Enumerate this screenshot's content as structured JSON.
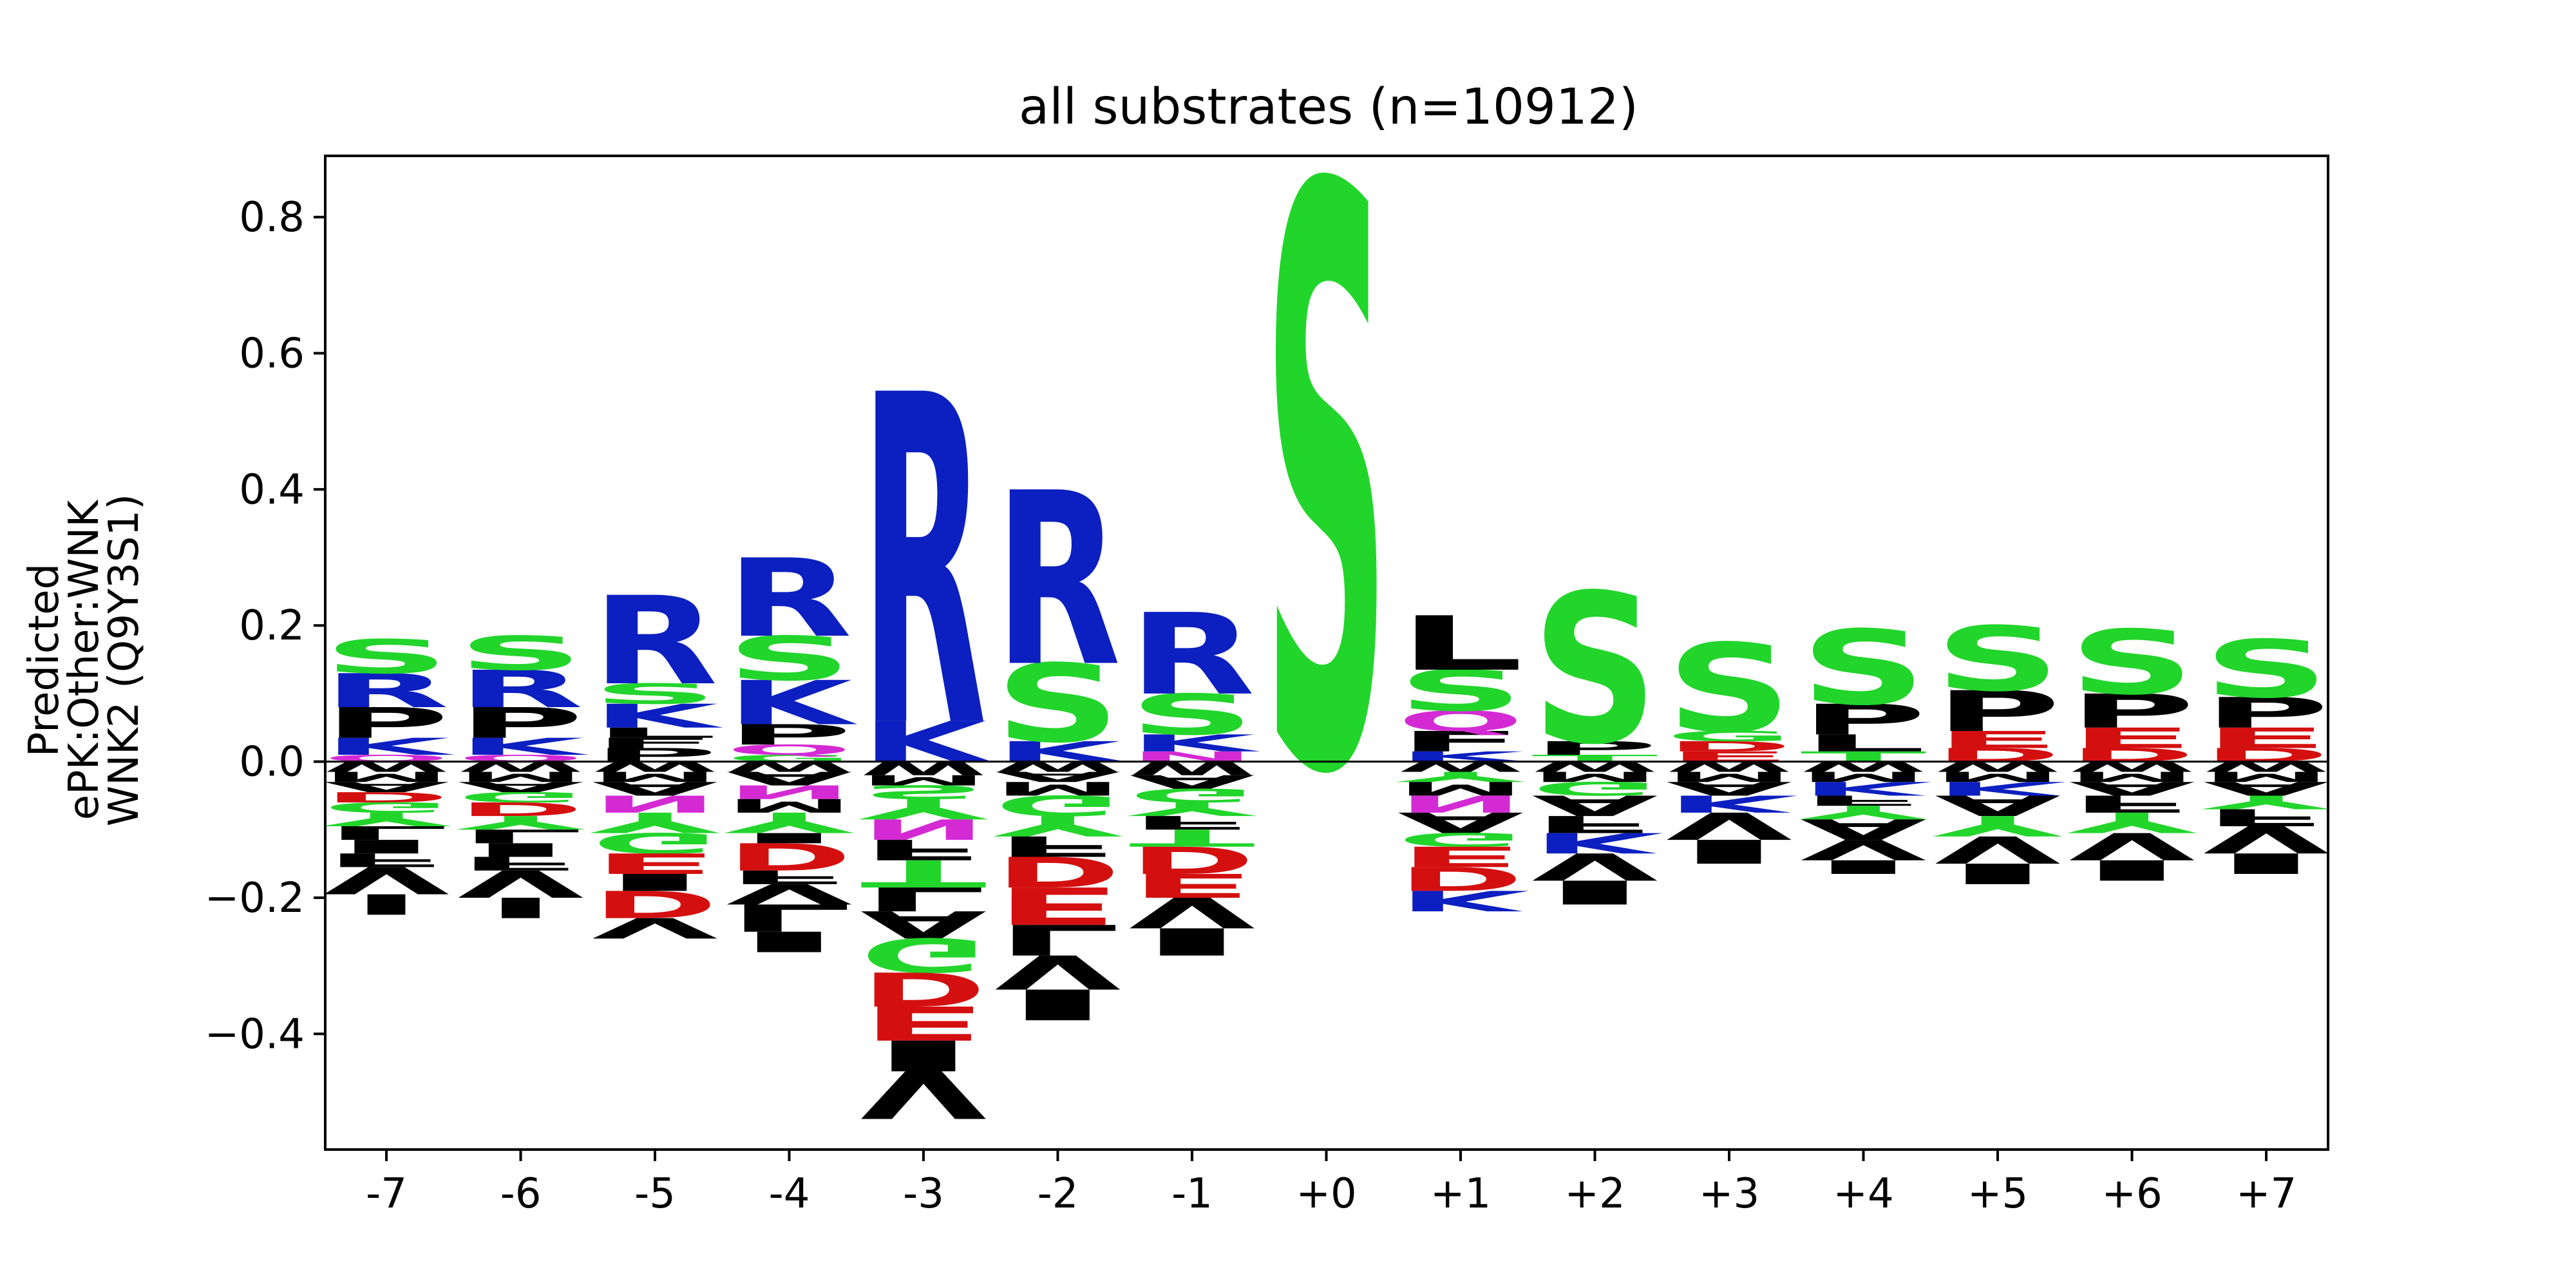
{
  "chart_data": {
    "type": "sequence-logo",
    "title": "all substrates (n=10912)",
    "ylabel": [
      "Predicted",
      "ePK:Other:WNK",
      "WNK2 (Q9Y3S1)"
    ],
    "ylim": [
      -0.57,
      0.89
    ],
    "yticks": [
      -0.4,
      -0.2,
      0.0,
      0.2,
      0.4,
      0.6,
      0.8
    ],
    "ytick_labels": [
      "−0.4",
      "−0.2",
      "0.0",
      "0.2",
      "0.4",
      "0.6",
      "0.8"
    ],
    "positions": [
      "-7",
      "-6",
      "-5",
      "-4",
      "-3",
      "-2",
      "-1",
      "+0",
      "+1",
      "+2",
      "+3",
      "+4",
      "+5",
      "+6",
      "+7"
    ],
    "colors": {
      "S": "#22d52b",
      "T": "#22d52b",
      "G": "#22d52b",
      "Y": "#22d52b",
      "C": "#22d52b",
      "N": "#d42ad4",
      "Q": "#d42ad4",
      "K": "#0c1fc0",
      "R": "#0c1fc0",
      "H": "#0c1fc0",
      "D": "#d40f0f",
      "E": "#d40f0f",
      "A": "#000000",
      "V": "#000000",
      "L": "#000000",
      "I": "#000000",
      "P": "#000000",
      "W": "#000000",
      "F": "#000000",
      "M": "#000000"
    },
    "columns": [
      {
        "pos": "-7",
        "positive": [
          [
            "Q",
            0.01
          ],
          [
            "K",
            0.025
          ],
          [
            "P",
            0.045
          ],
          [
            "R",
            0.05
          ],
          [
            "S",
            0.05
          ]
        ],
        "negative": [
          [
            "W",
            0.015
          ],
          [
            "M",
            0.015
          ],
          [
            "A",
            0.015
          ],
          [
            "D",
            0.015
          ],
          [
            "G",
            0.015
          ],
          [
            "Y",
            0.02
          ],
          [
            "L",
            0.02
          ],
          [
            "I",
            0.02
          ],
          [
            "F",
            0.02
          ],
          [
            "V",
            0.04
          ],
          [
            "_",
            0.03
          ]
        ]
      },
      {
        "pos": "-6",
        "positive": [
          [
            "Q",
            0.01
          ],
          [
            "K",
            0.025
          ],
          [
            "P",
            0.045
          ],
          [
            "R",
            0.055
          ],
          [
            "S",
            0.05
          ]
        ],
        "negative": [
          [
            "W",
            0.015
          ],
          [
            "M",
            0.015
          ],
          [
            "A",
            0.015
          ],
          [
            "G",
            0.015
          ],
          [
            "D",
            0.02
          ],
          [
            "Y",
            0.02
          ],
          [
            "L",
            0.02
          ],
          [
            "I",
            0.02
          ],
          [
            "F",
            0.02
          ],
          [
            "V",
            0.04
          ],
          [
            "_",
            0.03
          ]
        ]
      },
      {
        "pos": "-5",
        "positive": [
          [
            "P",
            0.02
          ],
          [
            "F",
            0.015
          ],
          [
            "L",
            0.015
          ],
          [
            "K",
            0.035
          ],
          [
            "S",
            0.03
          ],
          [
            "R",
            0.13
          ]
        ],
        "negative": [
          [
            "W",
            0.015
          ],
          [
            "M",
            0.015
          ],
          [
            "A",
            0.02
          ],
          [
            "N",
            0.025
          ],
          [
            "Y",
            0.03
          ],
          [
            "G",
            0.03
          ],
          [
            "E",
            0.03
          ],
          [
            "I",
            0.025
          ],
          [
            "D",
            0.04
          ],
          [
            "V",
            0.03
          ]
        ]
      },
      {
        "pos": "-4",
        "positive": [
          [
            "G",
            0.01
          ],
          [
            "Q",
            0.015
          ],
          [
            "P",
            0.03
          ],
          [
            "K",
            0.065
          ],
          [
            "S",
            0.065
          ],
          [
            "R",
            0.115
          ]
        ],
        "negative": [
          [
            "W",
            0.015
          ],
          [
            "A",
            0.02
          ],
          [
            "N",
            0.02
          ],
          [
            "M",
            0.02
          ],
          [
            "Y",
            0.03
          ],
          [
            "I",
            0.015
          ],
          [
            "D",
            0.04
          ],
          [
            "F",
            0.02
          ],
          [
            "V",
            0.03
          ],
          [
            "L",
            0.04
          ],
          [
            "I",
            0.03
          ]
        ]
      },
      {
        "pos": "-3",
        "positive": [
          [
            "K",
            0.06
          ],
          [
            "R",
            0.485
          ]
        ],
        "negative": [
          [
            "W",
            0.02
          ],
          [
            "M",
            0.015
          ],
          [
            "S",
            0.02
          ],
          [
            "Y",
            0.03
          ],
          [
            "N",
            0.03
          ],
          [
            "F",
            0.03
          ],
          [
            "T",
            0.04
          ],
          [
            "L",
            0.035
          ],
          [
            "A",
            0.04
          ],
          [
            "G",
            0.05
          ],
          [
            "D",
            0.05
          ],
          [
            "E",
            0.05
          ],
          [
            "I",
            0.045
          ],
          [
            "V",
            0.07
          ]
        ]
      },
      {
        "pos": "-2",
        "positive": [
          [
            "K",
            0.03
          ],
          [
            "S",
            0.115
          ],
          [
            "R",
            0.255
          ]
        ],
        "negative": [
          [
            "W",
            0.015
          ],
          [
            "A",
            0.015
          ],
          [
            "M",
            0.02
          ],
          [
            "G",
            0.03
          ],
          [
            "Y",
            0.03
          ],
          [
            "F",
            0.03
          ],
          [
            "D",
            0.045
          ],
          [
            "E",
            0.055
          ],
          [
            "L",
            0.045
          ],
          [
            "V",
            0.05
          ],
          [
            "I",
            0.045
          ]
        ]
      },
      {
        "pos": "-1",
        "positive": [
          [
            "N",
            0.015
          ],
          [
            "K",
            0.025
          ],
          [
            "S",
            0.06
          ],
          [
            "R",
            0.12
          ]
        ],
        "negative": [
          [
            "W",
            0.02
          ],
          [
            "A",
            0.02
          ],
          [
            "G",
            0.02
          ],
          [
            "Y",
            0.02
          ],
          [
            "F",
            0.02
          ],
          [
            "T",
            0.025
          ],
          [
            "D",
            0.04
          ],
          [
            "E",
            0.035
          ],
          [
            "V",
            0.045
          ],
          [
            "I",
            0.04
          ]
        ]
      },
      {
        "pos": "+0",
        "positive": [
          [
            "S",
            0.85
          ]
        ],
        "negative": []
      },
      {
        "pos": "+1",
        "positive": [
          [
            "K",
            0.015
          ],
          [
            "F",
            0.03
          ],
          [
            "Q",
            0.03
          ],
          [
            "S",
            0.06
          ],
          [
            "L",
            0.08
          ]
        ],
        "negative": [
          [
            "W",
            0.015
          ],
          [
            "Y",
            0.015
          ],
          [
            "M",
            0.02
          ],
          [
            "N",
            0.025
          ],
          [
            "A",
            0.03
          ],
          [
            "G",
            0.02
          ],
          [
            "E",
            0.03
          ],
          [
            "D",
            0.035
          ],
          [
            "K",
            0.03
          ]
        ]
      },
      {
        "pos": "+2",
        "positive": [
          [
            "T",
            0.01
          ],
          [
            "P",
            0.02
          ],
          [
            "S",
            0.22
          ]
        ],
        "negative": [
          [
            "W",
            0.015
          ],
          [
            "M",
            0.015
          ],
          [
            "G",
            0.02
          ],
          [
            "A",
            0.03
          ],
          [
            "F",
            0.025
          ],
          [
            "K",
            0.03
          ],
          [
            "V",
            0.04
          ],
          [
            "I",
            0.035
          ]
        ]
      },
      {
        "pos": "+3",
        "positive": [
          [
            "E",
            0.015
          ],
          [
            "D",
            0.015
          ],
          [
            "G",
            0.015
          ],
          [
            "S",
            0.13
          ]
        ],
        "negative": [
          [
            "W",
            0.015
          ],
          [
            "M",
            0.015
          ],
          [
            "A",
            0.02
          ],
          [
            "K",
            0.025
          ],
          [
            "V",
            0.04
          ],
          [
            "I",
            0.035
          ]
        ]
      },
      {
        "pos": "+4",
        "positive": [
          [
            "T",
            0.015
          ],
          [
            "L",
            0.025
          ],
          [
            "P",
            0.045
          ],
          [
            "S",
            0.11
          ]
        ],
        "negative": [
          [
            "W",
            0.015
          ],
          [
            "M",
            0.015
          ],
          [
            "K",
            0.02
          ],
          [
            "F",
            0.015
          ],
          [
            "Y",
            0.02
          ],
          [
            "A",
            0.03
          ],
          [
            "V",
            0.03
          ],
          [
            "I",
            0.02
          ]
        ]
      },
      {
        "pos": "+5",
        "positive": [
          [
            "D",
            0.02
          ],
          [
            "E",
            0.025
          ],
          [
            "P",
            0.06
          ],
          [
            "S",
            0.095
          ]
        ],
        "negative": [
          [
            "W",
            0.015
          ],
          [
            "M",
            0.015
          ],
          [
            "K",
            0.02
          ],
          [
            "A",
            0.03
          ],
          [
            "Y",
            0.03
          ],
          [
            "V",
            0.04
          ],
          [
            "I",
            0.03
          ]
        ]
      },
      {
        "pos": "+6",
        "positive": [
          [
            "D",
            0.02
          ],
          [
            "E",
            0.03
          ],
          [
            "P",
            0.05
          ],
          [
            "S",
            0.095
          ]
        ],
        "negative": [
          [
            "W",
            0.015
          ],
          [
            "M",
            0.015
          ],
          [
            "A",
            0.02
          ],
          [
            "F",
            0.025
          ],
          [
            "Y",
            0.03
          ],
          [
            "V",
            0.04
          ],
          [
            "I",
            0.03
          ]
        ]
      },
      {
        "pos": "+7",
        "positive": [
          [
            "D",
            0.02
          ],
          [
            "E",
            0.03
          ],
          [
            "P",
            0.045
          ],
          [
            "S",
            0.085
          ]
        ],
        "negative": [
          [
            "W",
            0.015
          ],
          [
            "M",
            0.015
          ],
          [
            "A",
            0.02
          ],
          [
            "Y",
            0.02
          ],
          [
            "F",
            0.025
          ],
          [
            "V",
            0.04
          ],
          [
            "I",
            0.03
          ]
        ]
      }
    ]
  }
}
